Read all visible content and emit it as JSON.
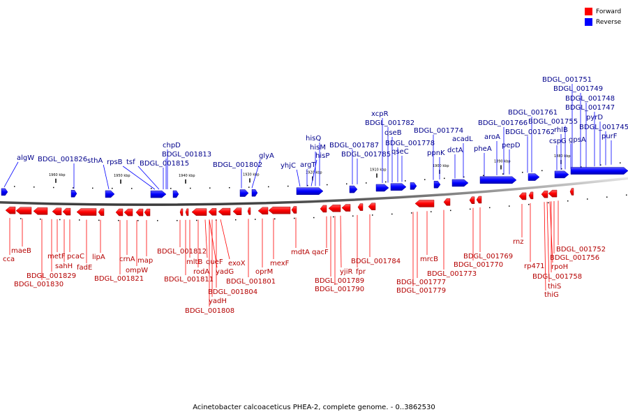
{
  "legend": {
    "forward_label": "Forward",
    "reverse_label": "Reverse",
    "forward_color": "#ff0000",
    "reverse_color": "#0000ff"
  },
  "caption": "Acinetobacter calcoaceticus PHEA-2, complete genome. - 0..3862530",
  "ticks": [
    "1960 kbp",
    "1950 kbp",
    "1940 kbp",
    "1930 kbp",
    "1920 kbp",
    "1910 kbp",
    "1900 kbp",
    "1890 kbp",
    "1880 kbp"
  ],
  "reverse_genes": [
    "algW",
    "BDGL_001826",
    "sthA",
    "rpsB",
    "tsf",
    "BDGL_001815",
    "BDGL_001813",
    "chpD",
    "BDGL_001802",
    "glyA",
    "yhjC",
    "argT",
    "hisP",
    "hisM",
    "hisQ",
    "BDGL_001787",
    "BDGL_001785",
    "xcpR",
    "BDGL_001782",
    "qseB",
    "BDGL_001778",
    "qseC",
    "BDGL_001774",
    "ppnK",
    "dctA",
    "acadL",
    "pheA",
    "aroA",
    "BDGL_001766",
    "pepD",
    "BDGL_001762",
    "BDGL_001761",
    "cspG",
    "rhlB",
    "BDGL_001755",
    "gpsA",
    "BDGL_001751",
    "BDGL_001749",
    "BDGL_001748",
    "BDGL_001747",
    "pyrD",
    "BDGL_001745",
    "purF"
  ],
  "forward_genes": [
    "cca",
    "maeB",
    "BDGL_001830",
    "BDGL_001829",
    "metF",
    "sahH",
    "pcaC",
    "fadE",
    "lipA",
    "BDGL_001821",
    "crnA",
    "ompW",
    "map",
    "BDGL_001812",
    "BDGL_001811",
    "mltB",
    "rodA",
    "queF",
    "yadG",
    "exoX",
    "BDGL_001808",
    "yadH",
    "BDGL_001804",
    "BDGL_001801",
    "oprM",
    "mexF",
    "mdtA",
    "qacF",
    "BDGL_001790",
    "BDGL_001789",
    "yjiR",
    "fpr",
    "BDGL_001784",
    "BDGL_001779",
    "BDGL_001777",
    "mrcB",
    "BDGL_001773",
    "BDGL_001770",
    "BDGL_001769",
    "rnz",
    "rp471",
    "thiG",
    "thiS",
    "BDGL_001758",
    "rpoH",
    "BDGL_001756",
    "BDGL_001752"
  ]
}
